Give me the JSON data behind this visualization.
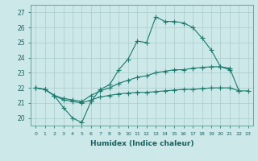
{
  "xlabel": "Humidex (Indice chaleur)",
  "background_color": "#cce8e8",
  "grid_color": "#aacccc",
  "line_color": "#1a7a6e",
  "xlim": [
    -0.5,
    23.5
  ],
  "ylim": [
    19.5,
    27.5
  ],
  "xticks": [
    0,
    1,
    2,
    3,
    4,
    5,
    6,
    7,
    8,
    9,
    10,
    11,
    12,
    13,
    14,
    15,
    16,
    17,
    18,
    19,
    20,
    21,
    22,
    23
  ],
  "yticks": [
    20,
    21,
    22,
    23,
    24,
    25,
    26,
    27
  ],
  "line1_x": [
    0,
    1,
    2,
    3,
    4,
    5,
    6,
    7,
    8,
    9,
    10,
    11,
    12,
    13,
    14,
    15,
    16,
    17,
    18,
    19,
    20,
    21
  ],
  "line1_y": [
    22.0,
    21.9,
    21.5,
    20.7,
    20.0,
    19.7,
    21.1,
    21.9,
    22.2,
    23.2,
    23.9,
    25.1,
    25.0,
    26.7,
    26.4,
    26.4,
    26.3,
    26.0,
    25.3,
    24.5,
    23.4,
    23.2
  ],
  "line2_x": [
    0,
    1,
    2,
    3,
    4,
    5,
    6,
    7,
    8,
    9,
    10,
    11,
    12,
    13,
    14,
    15,
    16,
    17,
    18,
    19,
    20,
    21,
    22
  ],
  "line2_y": [
    22.0,
    21.9,
    21.5,
    21.3,
    21.2,
    21.1,
    21.5,
    21.8,
    22.0,
    22.3,
    22.5,
    22.7,
    22.8,
    23.0,
    23.1,
    23.2,
    23.2,
    23.3,
    23.35,
    23.4,
    23.4,
    23.3,
    21.8
  ],
  "line3_x": [
    0,
    1,
    2,
    3,
    4,
    5,
    6,
    7,
    8,
    9,
    10,
    11,
    12,
    13,
    14,
    15,
    16,
    17,
    18,
    19,
    20,
    21,
    22,
    23
  ],
  "line3_y": [
    22.0,
    21.9,
    21.5,
    21.2,
    21.1,
    21.0,
    21.2,
    21.4,
    21.5,
    21.6,
    21.65,
    21.7,
    21.7,
    21.75,
    21.8,
    21.85,
    21.9,
    21.9,
    21.95,
    22.0,
    22.0,
    22.0,
    21.8,
    21.8
  ]
}
